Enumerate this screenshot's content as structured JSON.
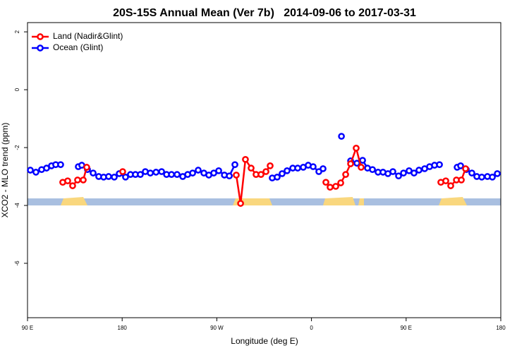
{
  "chart_data": {
    "type": "line",
    "title": "20S-15S Annual Mean (Ver 7b)   2014-09-06 to 2017-03-31",
    "x_label": "Longitude (deg E)",
    "y_label": "XCO2 - MLO trend (ppm)",
    "xlim": [
      90,
      540
    ],
    "xticks": [
      {
        "value": 90,
        "label": "90 E"
      },
      {
        "value": 180,
        "label": "180"
      },
      {
        "value": 270,
        "label": "90 W"
      },
      {
        "value": 360,
        "label": "0"
      },
      {
        "value": 450,
        "label": "90 E"
      },
      {
        "value": 540,
        "label": "180"
      }
    ],
    "ylim": [
      -7.88,
      2.32
    ],
    "yticks": [
      2,
      0,
      -2,
      -4,
      -6
    ],
    "legend": "topleft",
    "series": [
      {
        "name": "Land (Nadir&Glint)",
        "color": "#ff0000",
        "x": [
          123.5,
          128.2,
          132.9,
          137.6,
          143,
          146.3,
          null,
          180.5,
          null,
          288.5,
          292.6,
          297.2,
          302.6,
          307.3,
          312,
          316.7,
          320.7,
          null,
          373.7,
          377.7,
          383.1,
          387.8,
          392.5,
          397.2,
          402.5,
          407.2,
          null,
          483,
          487.7,
          492.4,
          497.8,
          502.5,
          506.5
        ],
        "values": [
          -3.2,
          -3.15,
          -3.32,
          -3.12,
          -3.12,
          -2.68,
          null,
          -2.83,
          null,
          -2.95,
          -3.93,
          -2.41,
          -2.71,
          -2.93,
          -2.93,
          -2.83,
          -2.63,
          null,
          -3.2,
          -3.37,
          -3.34,
          -3.22,
          -2.93,
          -2.56,
          -2.02,
          -2.68,
          null,
          -3.2,
          -3.15,
          -3.32,
          -3.12,
          -3.12,
          -2.73
        ]
      },
      {
        "name": "Ocean (Glint)",
        "color": "#0000ff",
        "x": [
          92.7,
          98,
          103.4,
          108.1,
          112.8,
          116.8,
          121.5,
          null,
          138.3,
          141.6,
          147,
          152.4,
          157.7,
          162.4,
          167.1,
          172.5,
          177.2,
          183.2,
          187.9,
          192.6,
          197.3,
          202,
          206.8,
          212.2,
          217.5,
          222.2,
          226.9,
          232.2,
          237.6,
          242.3,
          247,
          252.3,
          257.7,
          262.4,
          267.1,
          271.8,
          277.2,
          281.9,
          287.2,
          null,
          322.7,
          327.4,
          332.1,
          336.8,
          342.2,
          346.9,
          352.2,
          356.9,
          361.6,
          367,
          371,
          null,
          388.5,
          null,
          397.2,
          403.2,
          408.6,
          413.3,
          418,
          423.3,
          428,
          432.7,
          437.4,
          442.8,
          447.5,
          452.8,
          457.5,
          462.2,
          467.6,
          472.3,
          477,
          481.7,
          null,
          498.5,
          501.8,
          507.2,
          512.5,
          517.2,
          521.9,
          527.3,
          532,
          536.7
        ],
        "values": [
          -2.78,
          -2.85,
          -2.76,
          -2.71,
          -2.63,
          -2.59,
          -2.59,
          null,
          -2.66,
          -2.61,
          -2.76,
          -2.88,
          -3.0,
          -3.02,
          -3.0,
          -3.02,
          -2.9,
          -3.02,
          -2.93,
          -2.93,
          -2.93,
          -2.83,
          -2.88,
          -2.85,
          -2.83,
          -2.93,
          -2.93,
          -2.93,
          -3.0,
          -2.93,
          -2.88,
          -2.78,
          -2.88,
          -2.95,
          -2.88,
          -2.8,
          -2.95,
          -2.98,
          -2.59,
          null,
          -3.05,
          -3.02,
          -2.9,
          -2.8,
          -2.71,
          -2.71,
          -2.68,
          -2.61,
          -2.66,
          -2.83,
          -2.73,
          null,
          -1.61,
          null,
          -2.46,
          -2.54,
          -2.44,
          -2.71,
          -2.76,
          -2.85,
          -2.85,
          -2.9,
          -2.83,
          -2.98,
          -2.88,
          -2.8,
          -2.88,
          -2.78,
          -2.73,
          -2.66,
          -2.61,
          -2.59,
          null,
          -2.68,
          -2.63,
          -2.76,
          -2.88,
          -3.0,
          -3.02,
          -3.0,
          -3.02,
          -2.9
        ]
      }
    ]
  }
}
